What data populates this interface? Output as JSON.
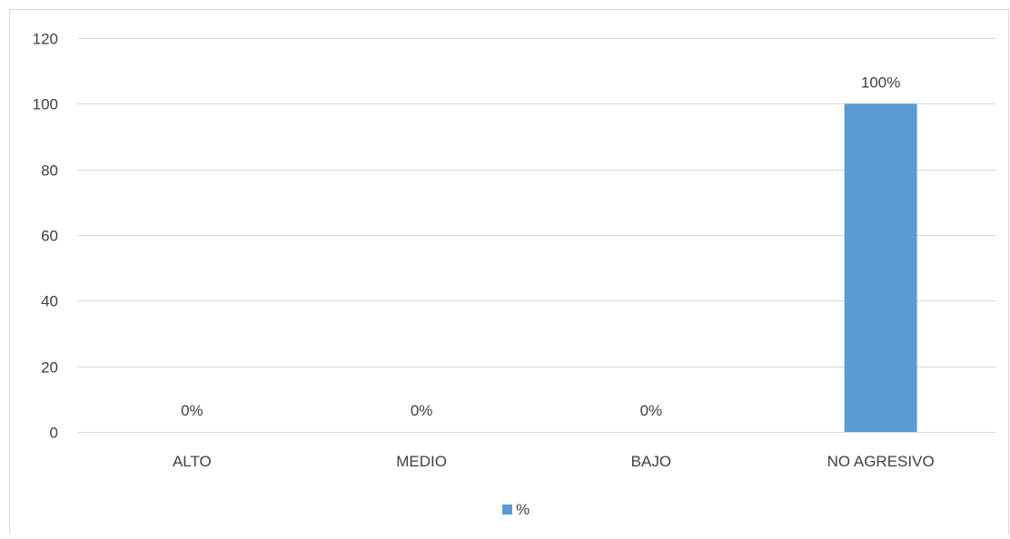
{
  "chart_data": {
    "type": "bar",
    "categories": [
      "ALTO",
      "MEDIO",
      "BAJO",
      "NO AGRESIVO"
    ],
    "series": [
      {
        "name": "%",
        "values": [
          0,
          0,
          0,
          100
        ],
        "color": "#5b9bd5"
      }
    ],
    "data_labels": [
      "0%",
      "0%",
      "0%",
      "100%"
    ],
    "ylim": [
      0,
      120
    ],
    "yticks": [
      "0",
      "20",
      "40",
      "60",
      "80",
      "100",
      "120"
    ],
    "ytick_values": [
      0,
      20,
      40,
      60,
      80,
      100,
      120
    ],
    "grid": true,
    "legend_position": "bottom",
    "colors": {
      "gridline": "#d9d9d9",
      "axis": "#d9d9d9",
      "text": "#404040",
      "frame": "#d9d9d9"
    }
  }
}
